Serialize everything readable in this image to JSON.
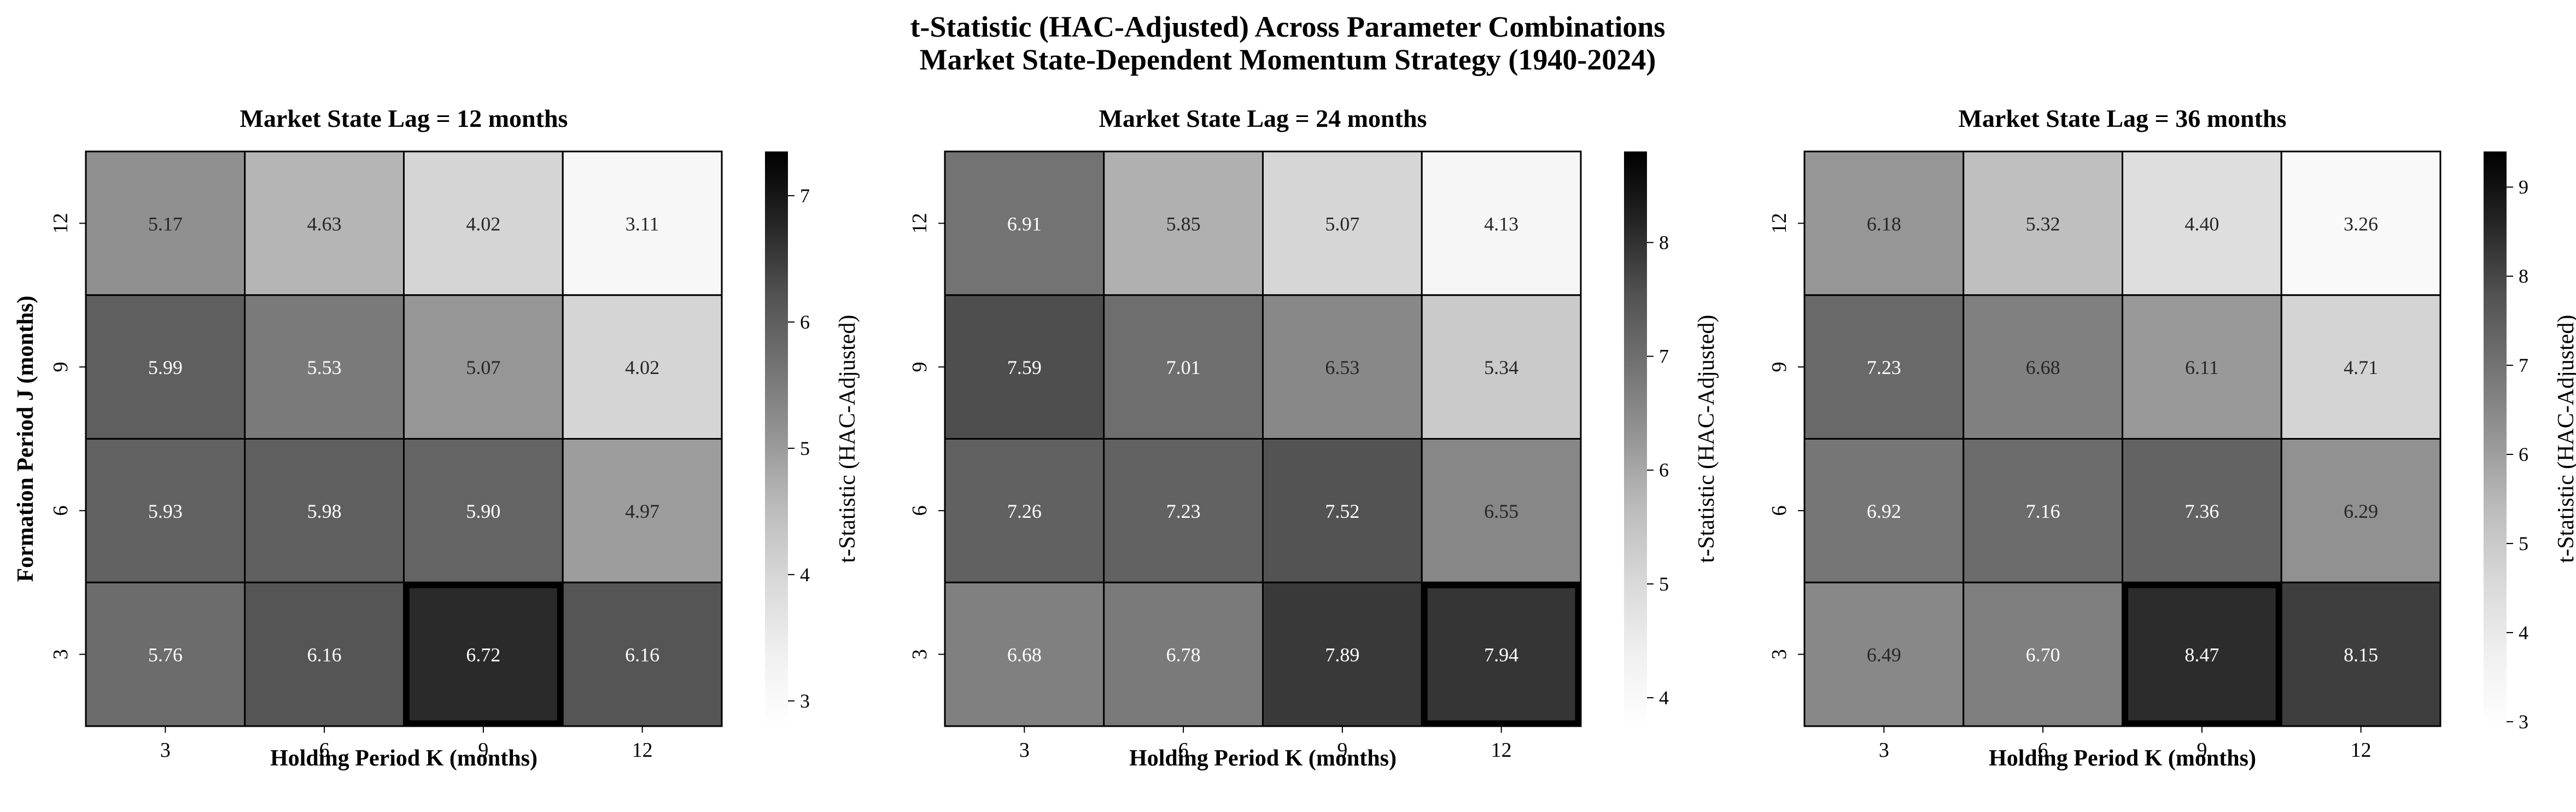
{
  "suptitle_lines": [
    "t-Statistic (HAC-Adjusted) Across Parameter Combinations",
    "Market State-Dependent Momentum Strategy (1940-2024)"
  ],
  "chart_data": [
    {
      "type": "heatmap",
      "title": "Market State Lag = 12 months",
      "xlabel": "Holding Period K (months)",
      "ylabel": "Formation Period J (months)",
      "x_categories": [
        "3",
        "6",
        "9",
        "12"
      ],
      "y_categories": [
        "12",
        "9",
        "6",
        "3"
      ],
      "values": [
        [
          5.17,
          4.63,
          4.02,
          3.11
        ],
        [
          5.99,
          5.53,
          5.07,
          4.02
        ],
        [
          5.93,
          5.98,
          5.9,
          4.97
        ],
        [
          5.76,
          6.16,
          6.72,
          6.16
        ]
      ],
      "labels": [
        [
          "5.17",
          "4.63",
          "4.02",
          "3.11"
        ],
        [
          "5.99",
          "5.53",
          "5.07",
          "4.02"
        ],
        [
          "5.93",
          "5.98",
          "5.90",
          "4.97"
        ],
        [
          "5.76",
          "6.16",
          "6.72",
          "6.16"
        ]
      ],
      "highlight": {
        "x": "9",
        "y": "3"
      },
      "colorbar": {
        "label": "t-Statistic (HAC-Adjusted)",
        "range": [
          2.8,
          7.35
        ],
        "ticks": [
          3,
          4,
          5,
          6,
          7
        ],
        "tick_labels": [
          "3",
          "4",
          "5",
          "6",
          "7"
        ]
      },
      "colormap": "Greys"
    },
    {
      "type": "heatmap",
      "title": "Market State Lag = 24 months",
      "xlabel": "Holding Period K (months)",
      "ylabel": "",
      "x_categories": [
        "3",
        "6",
        "9",
        "12"
      ],
      "y_categories": [
        "12",
        "9",
        "6",
        "3"
      ],
      "values": [
        [
          6.91,
          5.85,
          5.07,
          4.13
        ],
        [
          7.59,
          7.01,
          6.53,
          5.34
        ],
        [
          7.26,
          7.23,
          7.52,
          6.55
        ],
        [
          6.68,
          6.78,
          7.89,
          7.94
        ]
      ],
      "labels": [
        [
          "6.91",
          "5.85",
          "5.07",
          "4.13"
        ],
        [
          "7.59",
          "7.01",
          "6.53",
          "5.34"
        ],
        [
          "7.26",
          "7.23",
          "7.52",
          "6.55"
        ],
        [
          "6.68",
          "6.78",
          "7.89",
          "7.94"
        ]
      ],
      "highlight": {
        "x": "12",
        "y": "3"
      },
      "colorbar": {
        "label": "t-Statistic (HAC-Adjusted)",
        "range": [
          3.75,
          8.8
        ],
        "ticks": [
          4,
          5,
          6,
          7,
          8
        ],
        "tick_labels": [
          "4",
          "5",
          "6",
          "7",
          "8"
        ]
      },
      "colormap": "Greys"
    },
    {
      "type": "heatmap",
      "title": "Market State Lag = 36 months",
      "xlabel": "Holding Period K (months)",
      "ylabel": "",
      "x_categories": [
        "3",
        "6",
        "9",
        "12"
      ],
      "y_categories": [
        "12",
        "9",
        "6",
        "3"
      ],
      "values": [
        [
          6.18,
          5.32,
          4.4,
          3.26
        ],
        [
          7.23,
          6.68,
          6.11,
          4.71
        ],
        [
          6.92,
          7.16,
          7.36,
          6.29
        ],
        [
          6.49,
          6.7,
          8.47,
          8.15
        ]
      ],
      "labels": [
        [
          "6.18",
          "5.32",
          "4.40",
          "3.26"
        ],
        [
          "7.23",
          "6.68",
          "6.11",
          "4.71"
        ],
        [
          "6.92",
          "7.16",
          "7.36",
          "6.29"
        ],
        [
          "6.49",
          "6.70",
          "8.47",
          "8.15"
        ]
      ],
      "highlight": {
        "x": "9",
        "y": "3"
      },
      "colorbar": {
        "label": "t-Statistic (HAC-Adjusted)",
        "range": [
          2.95,
          9.4
        ],
        "ticks": [
          3,
          4,
          5,
          6,
          7,
          8,
          9
        ],
        "tick_labels": [
          "3",
          "4",
          "5",
          "6",
          "7",
          "8",
          "9"
        ]
      },
      "colormap": "Greys"
    }
  ]
}
